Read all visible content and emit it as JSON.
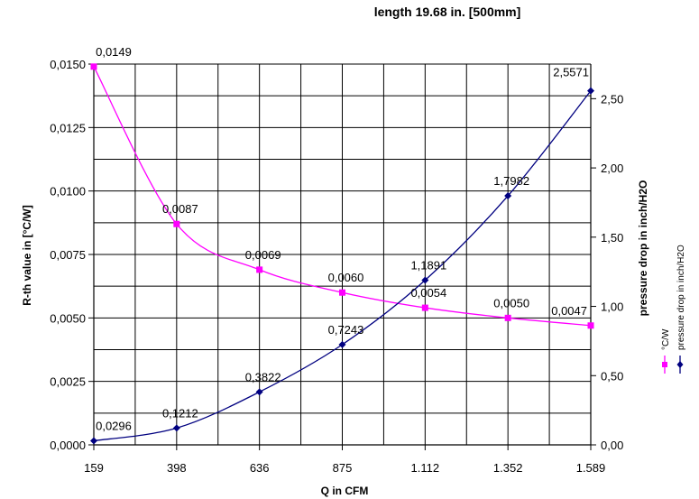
{
  "chart_data": {
    "type": "line",
    "title": "length 19.68 in. [500mm]",
    "xlabel": "Q in CFM",
    "ylabel_left": "R-th value in [°C/W]",
    "ylabel_right": "pressure drop in inch/H2O",
    "categories": [
      "159",
      "398",
      "636",
      "875",
      "1.112",
      "1.352",
      "1.589"
    ],
    "x": [
      159,
      398,
      636,
      875,
      1112,
      1352,
      1589
    ],
    "ylim_left": [
      0,
      0.015
    ],
    "yticks_left": [
      "0,0000",
      "0,0025",
      "0,0050",
      "0,0075",
      "0,0100",
      "0,0125",
      "0,0150"
    ],
    "ylim_right": [
      0,
      2.75
    ],
    "yticks_right": [
      "0,00",
      "0,50",
      "1,00",
      "1,50",
      "2,00",
      "2,50"
    ],
    "grid": true,
    "legend_position": "right",
    "series": [
      {
        "name": "°C/W",
        "axis": "left",
        "color": "#ff00ff",
        "marker": "square",
        "values": [
          0.0149,
          0.0087,
          0.0069,
          0.006,
          0.0054,
          0.005,
          0.0047
        ],
        "labels": [
          "0,0149",
          "0,0087",
          "0,0069",
          "0,0060",
          "0,0054",
          "0,0050",
          "0,0047"
        ]
      },
      {
        "name": "pressure drop in inch/H2O",
        "axis": "right",
        "color": "#000080",
        "marker": "diamond",
        "values": [
          0.0296,
          0.1212,
          0.3822,
          0.7243,
          1.1891,
          1.7982,
          2.5571
        ],
        "labels": [
          "0,0296",
          "0,1212",
          "0,3822",
          "0,7243",
          "1,1891",
          "1,7982",
          "2,5571"
        ]
      }
    ]
  }
}
